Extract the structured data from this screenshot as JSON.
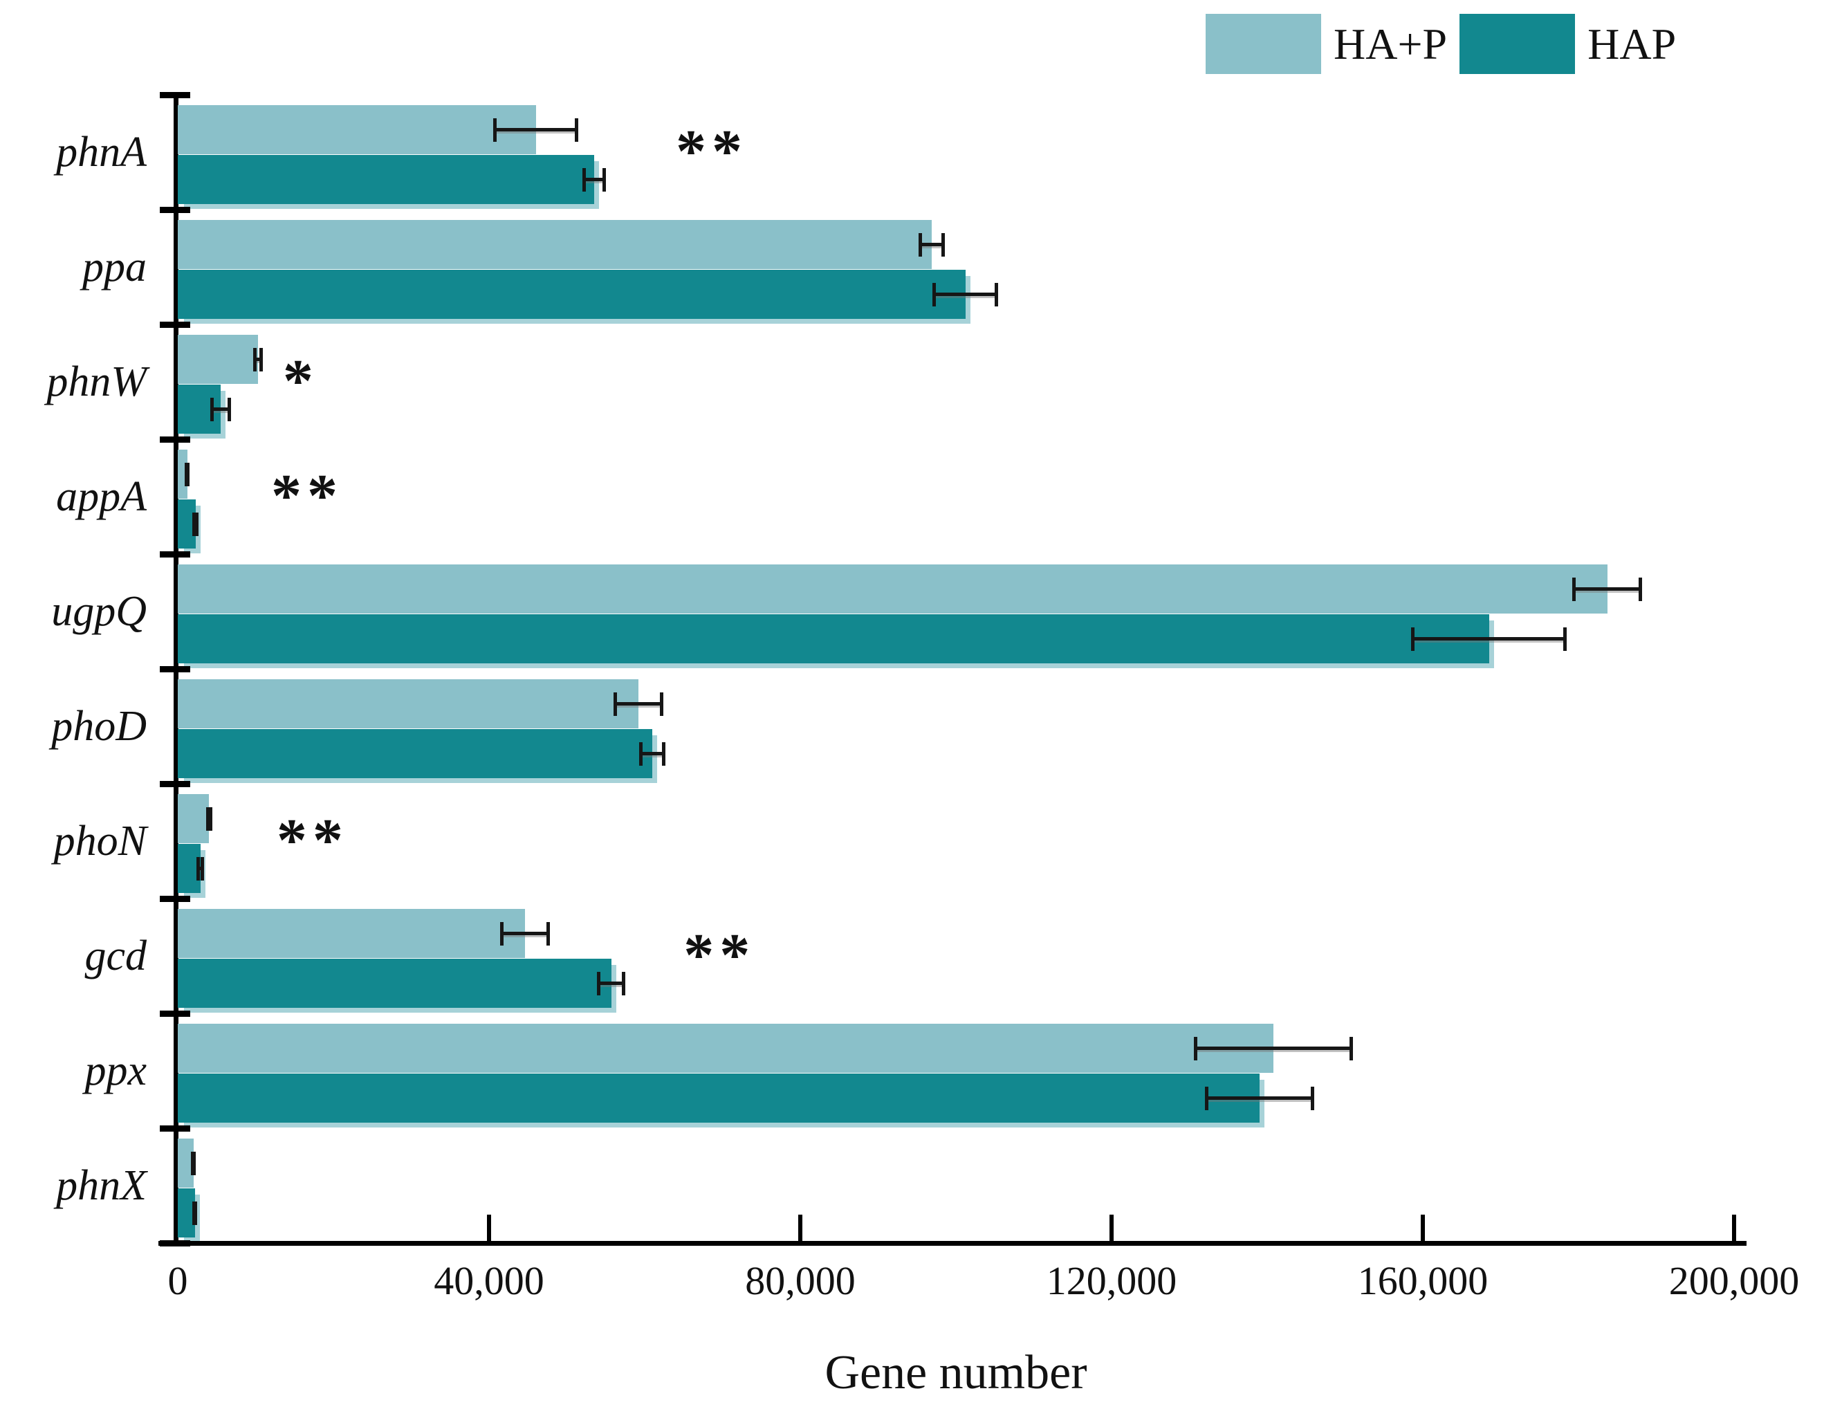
{
  "legend": {
    "items": [
      {
        "label": "HA+P",
        "color": "#8ac0c9"
      },
      {
        "label": "HAP",
        "color": "#12888f"
      }
    ]
  },
  "axis": {
    "tick_labels": [
      "0",
      "40,000",
      "80,000",
      "120,000",
      "160,000",
      "200,000"
    ],
    "tick_values": [
      0,
      40000,
      80000,
      120000,
      160000,
      200000
    ]
  },
  "chart_data": {
    "type": "bar",
    "orientation": "horizontal",
    "title": "",
    "xlabel": "Gene number",
    "ylabel": "",
    "xlim": [
      0,
      200000
    ],
    "grid": false,
    "legend_position": "top-right",
    "categories": [
      "phnA",
      "ppa",
      "phnW",
      "appA",
      "ugpQ",
      "phoD",
      "phoN",
      "gcd",
      "ppx",
      "phnX"
    ],
    "series": [
      {
        "name": "HA+P",
        "color": "#8ac0c9",
        "values": [
          46000,
          96900,
          10300,
          1200,
          183700,
          59200,
          4000,
          44600,
          140800,
          2000
        ],
        "errors": [
          5500,
          1700,
          600,
          300,
          4500,
          3200,
          400,
          3200,
          10200,
          300
        ]
      },
      {
        "name": "HAP",
        "color": "#12888f",
        "values": [
          53500,
          101200,
          5500,
          2300,
          168500,
          61000,
          2900,
          55700,
          139000,
          2200
        ],
        "errors": [
          1500,
          4200,
          1300,
          400,
          10000,
          1700,
          500,
          1800,
          7000,
          300
        ]
      }
    ],
    "significance": [
      {
        "category": "phnA",
        "label": "**",
        "x": 64000
      },
      {
        "category": "phnW",
        "label": "*",
        "x": 13500
      },
      {
        "category": "appA",
        "label": "**",
        "x": 12000
      },
      {
        "category": "phoN",
        "label": "**",
        "x": 12700
      },
      {
        "category": "gcd",
        "label": "**",
        "x": 65000
      }
    ]
  }
}
